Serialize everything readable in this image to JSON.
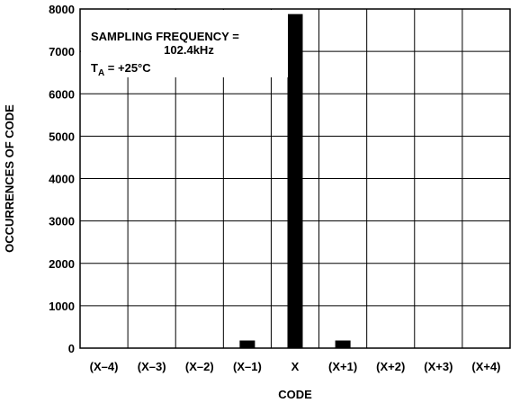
{
  "chart_data": {
    "type": "bar",
    "categories": [
      "(X–4)",
      "(X–3)",
      "(X–2)",
      "(X–1)",
      "X",
      "(X+1)",
      "(X+2)",
      "(X+3)",
      "(X+4)"
    ],
    "values": [
      0,
      0,
      0,
      180,
      7880,
      180,
      0,
      0,
      0
    ],
    "xlabel": "CODE",
    "ylabel": "OCCURRENCES OF CODE",
    "ylim": [
      0,
      8000
    ],
    "yticks": [
      0,
      1000,
      2000,
      3000,
      4000,
      5000,
      6000,
      7000,
      8000
    ],
    "grid": true,
    "bar_color": "#000000",
    "annotation": {
      "line1": "SAMPLING FREQUENCY =",
      "line2": "102.4kHz",
      "temp_prefix": "T",
      "temp_sub": "A",
      "temp_suffix": " = +25°C"
    }
  }
}
